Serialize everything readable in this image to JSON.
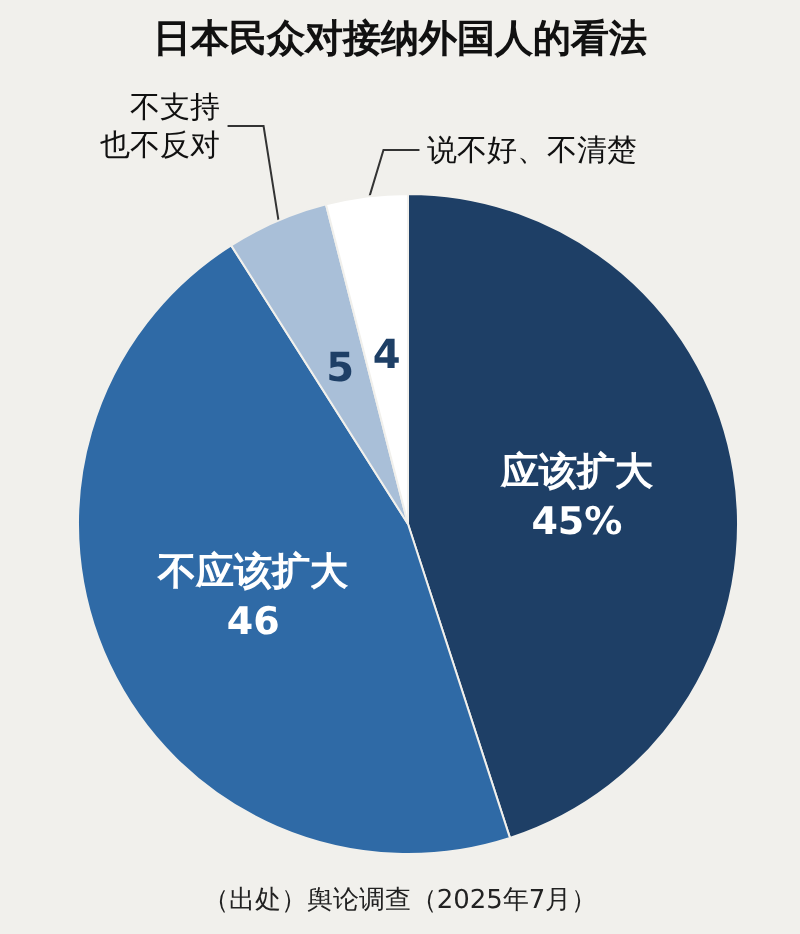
{
  "chart_data": {
    "type": "pie",
    "title": "日本民众对接纳外国人的看法",
    "categories": [
      "应该扩大",
      "不应该扩大",
      "不支持也不反对",
      "说不好、不清楚"
    ],
    "values": [
      45,
      46,
      5,
      4
    ],
    "colors": [
      "#1e3f66",
      "#2f6aa6",
      "#a9bfd8",
      "#ffffff"
    ],
    "value_labels": [
      "45%",
      "46",
      "5",
      "4"
    ],
    "annotations": [
      "（出处）舆论调查（2025年7月）"
    ],
    "legend": false
  }
}
